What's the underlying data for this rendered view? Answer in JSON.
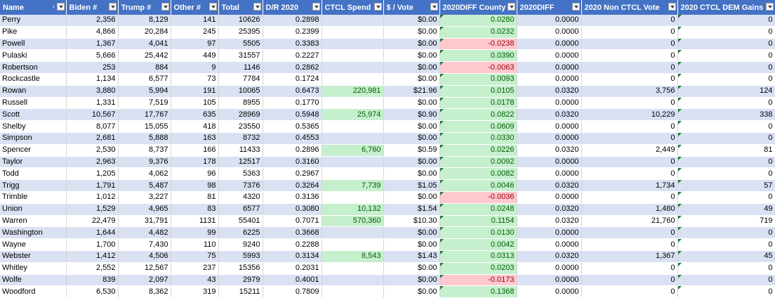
{
  "sheet": {
    "headers": [
      "Name",
      "Biden #",
      "Trump #",
      "Other #",
      "Total",
      "D/R 2020",
      "CTCL Spend",
      "$ / Vote",
      "2020DIFF County",
      "2020DIFF",
      "2020 Non CTCL Vote",
      "2020 CTCL DEM Gains"
    ],
    "rows": [
      [
        "Perry",
        "2,356",
        "8,129",
        "141",
        "10626",
        "0.2898",
        "",
        "$0.00",
        "0.0280",
        "0.0000",
        "0",
        "0"
      ],
      [
        "Pike",
        "4,866",
        "20,284",
        "245",
        "25395",
        "0.2399",
        "",
        "$0.00",
        "0.0232",
        "0.0000",
        "0",
        "0"
      ],
      [
        "Powell",
        "1,367",
        "4,041",
        "97",
        "5505",
        "0.3383",
        "",
        "$0.00",
        "-0.0238",
        "0.0000",
        "0",
        "0"
      ],
      [
        "Pulaski",
        "5,666",
        "25,442",
        "449",
        "31557",
        "0.2227",
        "",
        "$0.00",
        "0.0390",
        "0.0000",
        "0",
        "0"
      ],
      [
        "Robertson",
        "253",
        "884",
        "9",
        "1146",
        "0.2862",
        "",
        "$0.00",
        "-0.0063",
        "0.0000",
        "0",
        "0"
      ],
      [
        "Rockcastle",
        "1,134",
        "6,577",
        "73",
        "7784",
        "0.1724",
        "",
        "$0.00",
        "0.0093",
        "0.0000",
        "0",
        "0"
      ],
      [
        "Rowan",
        "3,880",
        "5,994",
        "191",
        "10065",
        "0.6473",
        "220,981",
        "$21.96",
        "0.0105",
        "0.0320",
        "3,756",
        "124"
      ],
      [
        "Russell",
        "1,331",
        "7,519",
        "105",
        "8955",
        "0.1770",
        "",
        "$0.00",
        "0.0178",
        "0.0000",
        "0",
        "0"
      ],
      [
        "Scott",
        "10,567",
        "17,767",
        "635",
        "28969",
        "0.5948",
        "25,974",
        "$0.90",
        "0.0822",
        "0.0320",
        "10,229",
        "338"
      ],
      [
        "Shelby",
        "8,077",
        "15,055",
        "418",
        "23550",
        "0.5365",
        "",
        "$0.00",
        "0.0609",
        "0.0000",
        "0",
        "0"
      ],
      [
        "Simpson",
        "2,681",
        "5,888",
        "163",
        "8732",
        "0.4553",
        "",
        "$0.00",
        "0.0330",
        "0.0000",
        "0",
        "0"
      ],
      [
        "Spencer",
        "2,530",
        "8,737",
        "166",
        "11433",
        "0.2896",
        "6,760",
        "$0.59",
        "0.0226",
        "0.0320",
        "2,449",
        "81"
      ],
      [
        "Taylor",
        "2,963",
        "9,376",
        "178",
        "12517",
        "0.3160",
        "",
        "$0.00",
        "0.0092",
        "0.0000",
        "0",
        "0"
      ],
      [
        "Todd",
        "1,205",
        "4,062",
        "96",
        "5363",
        "0.2967",
        "",
        "$0.00",
        "0.0082",
        "0.0000",
        "0",
        "0"
      ],
      [
        "Trigg",
        "1,791",
        "5,487",
        "98",
        "7376",
        "0.3264",
        "7,739",
        "$1.05",
        "0.0046",
        "0.0320",
        "1,734",
        "57"
      ],
      [
        "Trimble",
        "1,012",
        "3,227",
        "81",
        "4320",
        "0.3136",
        "",
        "$0.00",
        "-0.0036",
        "0.0000",
        "0",
        "0"
      ],
      [
        "Union",
        "1,529",
        "4,965",
        "83",
        "6577",
        "0.3080",
        "10,132",
        "$1.54",
        "0.0248",
        "0.0320",
        "1,480",
        "49"
      ],
      [
        "Warren",
        "22,479",
        "31,791",
        "1131",
        "55401",
        "0.7071",
        "570,360",
        "$10.30",
        "0.1154",
        "0.0320",
        "21,760",
        "719"
      ],
      [
        "Washington",
        "1,644",
        "4,482",
        "99",
        "6225",
        "0.3668",
        "",
        "$0.00",
        "0.0130",
        "0.0000",
        "0",
        "0"
      ],
      [
        "Wayne",
        "1,700",
        "7,430",
        "110",
        "9240",
        "0.2288",
        "",
        "$0.00",
        "0.0042",
        "0.0000",
        "0",
        "0"
      ],
      [
        "Webster",
        "1,412",
        "4,506",
        "75",
        "5993",
        "0.3134",
        "8,543",
        "$1.43",
        "0.0313",
        "0.0320",
        "1,367",
        "45"
      ],
      [
        "Whitley",
        "2,552",
        "12,567",
        "237",
        "15356",
        "0.2031",
        "",
        "$0.00",
        "0.0203",
        "0.0000",
        "0",
        "0"
      ],
      [
        "Wolfe",
        "839",
        "2,097",
        "43",
        "2979",
        "0.4001",
        "",
        "$0.00",
        "-0.0173",
        "0.0000",
        "0",
        "0"
      ],
      [
        "Woodford",
        "6,530",
        "8,362",
        "319",
        "15211",
        "0.7809",
        "",
        "$0.00",
        "0.1368",
        "0.0000",
        "0",
        "0"
      ]
    ]
  },
  "colors": {
    "header_bg": "#4472c4",
    "band_bg": "#d9e1f2",
    "positive_fill": "#c6efce",
    "negative_fill": "#ffc7ce"
  }
}
